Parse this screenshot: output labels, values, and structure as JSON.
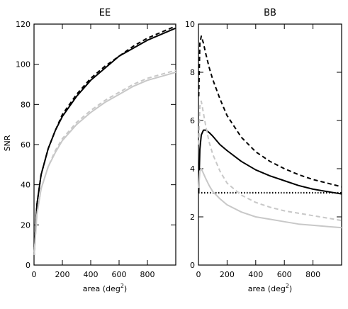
{
  "figure": {
    "ylabel": "SNR"
  },
  "chart_data": [
    {
      "type": "line",
      "title": "EE",
      "xlabel": "area (deg",
      "xlabel_sup": "2",
      "xlabel_close": ")",
      "ylabel": "SNR",
      "xlim": [
        0,
        1000
      ],
      "ylim": [
        0,
        120
      ],
      "xticks": [
        0,
        200,
        400,
        600,
        800
      ],
      "xtick_labels": [
        "0",
        "200",
        "400",
        "600",
        "800"
      ],
      "yticks": [
        0,
        20,
        40,
        60,
        80,
        100,
        120
      ],
      "ytick_labels": [
        "0",
        "20",
        "40",
        "60",
        "80",
        "100",
        "120"
      ],
      "grid": false,
      "series": [
        {
          "color": "#000000",
          "dash": "solid",
          "x": [
            1,
            20,
            50,
            100,
            150,
            200,
            300,
            400,
            500,
            600,
            700,
            800,
            900,
            1000
          ],
          "y": [
            5,
            30,
            45,
            58,
            67,
            74,
            84,
            92,
            98,
            104,
            108,
            112,
            115,
            118
          ]
        },
        {
          "color": "#000000",
          "dash": "dashed",
          "x": [
            1,
            20,
            50,
            100,
            150,
            200,
            300,
            400,
            500,
            600,
            700,
            800,
            900,
            1000
          ],
          "y": [
            5,
            30,
            45,
            58,
            67,
            75,
            85,
            93,
            99,
            104,
            109,
            113,
            116,
            119
          ]
        },
        {
          "color": "#c8c8c8",
          "dash": "solid",
          "x": [
            1,
            20,
            50,
            100,
            150,
            200,
            300,
            400,
            500,
            600,
            700,
            800,
            900,
            1000
          ],
          "y": [
            5,
            25,
            38,
            49,
            56,
            62,
            70,
            76,
            81,
            85,
            89,
            92,
            94,
            96
          ]
        },
        {
          "color": "#c8c8c8",
          "dash": "dashed",
          "x": [
            1,
            20,
            50,
            100,
            150,
            200,
            300,
            400,
            500,
            600,
            700,
            800,
            900,
            1000
          ],
          "y": [
            5,
            25,
            38,
            49,
            57,
            63,
            71,
            77,
            82,
            86,
            90,
            93,
            95,
            97
          ]
        }
      ]
    },
    {
      "type": "line",
      "title": "BB",
      "xlabel": "area (deg",
      "xlabel_sup": "2",
      "xlabel_close": ")",
      "xlim": [
        0,
        1000
      ],
      "ylim": [
        0,
        10
      ],
      "xticks": [
        0,
        200,
        400,
        600,
        800
      ],
      "xtick_labels": [
        "0",
        "200",
        "400",
        "600",
        "800"
      ],
      "yticks": [
        0,
        2,
        4,
        6,
        8,
        10
      ],
      "ytick_labels": [
        "0",
        "2",
        "4",
        "6",
        "8",
        "10"
      ],
      "grid": false,
      "series": [
        {
          "color": "#000000",
          "dash": "solid",
          "x": [
            2,
            10,
            20,
            35,
            50,
            75,
            100,
            150,
            200,
            300,
            400,
            500,
            600,
            700,
            800,
            900,
            1000
          ],
          "y": [
            3.0,
            4.8,
            5.4,
            5.6,
            5.6,
            5.5,
            5.35,
            5.0,
            4.75,
            4.3,
            3.95,
            3.7,
            3.5,
            3.3,
            3.15,
            3.05,
            2.95
          ]
        },
        {
          "color": "#000000",
          "dash": "dashed",
          "x": [
            2,
            10,
            20,
            35,
            50,
            75,
            100,
            150,
            200,
            300,
            400,
            500,
            600,
            700,
            800,
            900,
            1000
          ],
          "y": [
            7.0,
            9.2,
            9.5,
            9.2,
            8.8,
            8.2,
            7.7,
            6.9,
            6.2,
            5.3,
            4.7,
            4.3,
            4.0,
            3.75,
            3.55,
            3.4,
            3.25
          ]
        },
        {
          "color": "#000000",
          "dash": "dotted",
          "x": [
            0,
            1000
          ],
          "y": [
            3.0,
            3.0
          ]
        },
        {
          "color": "#c8c8c8",
          "dash": "solid",
          "x": [
            2,
            10,
            20,
            35,
            50,
            75,
            100,
            150,
            200,
            300,
            400,
            500,
            600,
            700,
            800,
            900,
            1000
          ],
          "y": [
            3.2,
            3.9,
            4.0,
            3.8,
            3.6,
            3.3,
            3.05,
            2.75,
            2.5,
            2.2,
            2.0,
            1.9,
            1.8,
            1.7,
            1.65,
            1.6,
            1.55
          ]
        },
        {
          "color": "#c8c8c8",
          "dash": "dashed",
          "x": [
            2,
            10,
            20,
            35,
            50,
            75,
            100,
            150,
            200,
            300,
            400,
            500,
            600,
            700,
            800,
            900,
            1000
          ],
          "y": [
            5.0,
            6.6,
            6.8,
            6.3,
            5.8,
            5.1,
            4.6,
            3.9,
            3.4,
            2.9,
            2.6,
            2.4,
            2.25,
            2.15,
            2.05,
            1.95,
            1.85
          ]
        }
      ]
    }
  ]
}
